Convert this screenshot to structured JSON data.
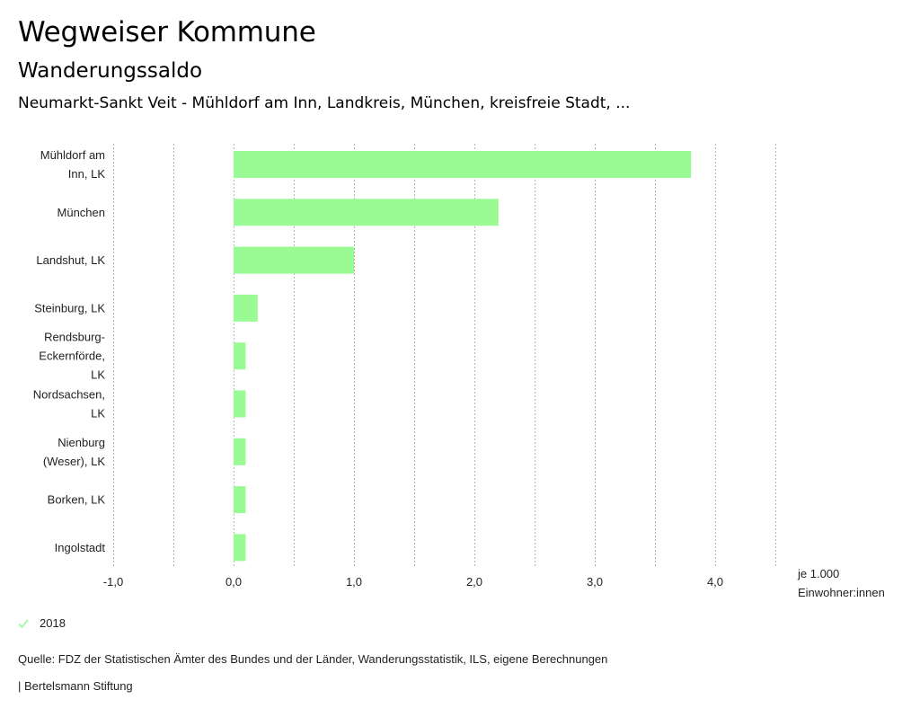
{
  "header": {
    "title": "Wegweiser Kommune",
    "subtitle": "Wanderungssaldo",
    "region": "Neumarkt-Sankt Veit - Mühldorf am Inn, Landkreis, München, kreisfreie Stadt, ..."
  },
  "chart_data": {
    "type": "bar",
    "orientation": "horizontal",
    "title": "Wanderungssaldo",
    "categories": [
      [
        "Mühldorf am",
        "Inn, LK"
      ],
      [
        "München"
      ],
      [
        "Landshut, LK"
      ],
      [
        "Steinburg, LK"
      ],
      [
        "Rendsburg-",
        "Eckernförde,",
        "LK"
      ],
      [
        "Nordsachsen,",
        "LK"
      ],
      [
        "Nienburg",
        "(Weser), LK"
      ],
      [
        "Borken, LK"
      ],
      [
        "Ingolstadt"
      ]
    ],
    "series": [
      {
        "name": "2018",
        "color": "#9afa94",
        "values": [
          3.8,
          2.2,
          1.0,
          0.2,
          0.1,
          0.1,
          0.1,
          0.1,
          0.1
        ]
      }
    ],
    "xlim": [
      -1.0,
      4.5
    ],
    "xticks": [
      -1.0,
      0.0,
      1.0,
      2.0,
      3.0,
      4.0
    ],
    "xtick_labels": [
      "-1,0",
      "0,0",
      "1,0",
      "2,0",
      "3,0",
      "4,0"
    ],
    "gridlines": [
      -1.0,
      -0.5,
      0.0,
      0.5,
      1.0,
      1.5,
      2.0,
      2.5,
      3.0,
      3.5,
      4.0,
      4.5
    ],
    "grid": true,
    "xlabel": [
      "je 1.000",
      "Einwohner:innen"
    ],
    "legend": "bottom-left"
  },
  "legend": {
    "label": "2018",
    "icon": "check-icon",
    "color": "#9afa94"
  },
  "footer": {
    "source": "Quelle: FDZ der Statistischen Ämter des Bundes und der Länder, Wanderungsstatistik, ILS, eigene Berechnungen",
    "credit": "| Bertelsmann Stiftung"
  }
}
